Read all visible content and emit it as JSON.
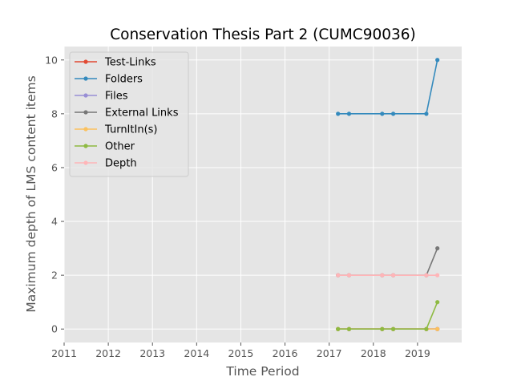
{
  "chart_data": {
    "type": "line",
    "title": "Conservation Thesis Part 2 (CUMC90036)",
    "xlabel": "Time Period",
    "ylabel": "Maximum depth of LMS content items",
    "xlim": [
      2011,
      2020
    ],
    "ylim": [
      -0.5,
      10.5
    ],
    "xticks": [
      2011,
      2012,
      2013,
      2014,
      2015,
      2016,
      2017,
      2018,
      2019
    ],
    "yticks": [
      0,
      2,
      4,
      6,
      8,
      10
    ],
    "x": [
      2017.2,
      2017.45,
      2018.2,
      2018.45,
      2019.2,
      2019.45
    ],
    "grid": true,
    "legend_position": "top-left",
    "series": [
      {
        "name": "Test-Links",
        "color": "#e24a33",
        "values": [
          0,
          0,
          0,
          0,
          0,
          0
        ]
      },
      {
        "name": "Folders",
        "color": "#348abd",
        "values": [
          8,
          8,
          8,
          8,
          8,
          10
        ]
      },
      {
        "name": "Files",
        "color": "#988ed5",
        "values": [
          0,
          0,
          0,
          0,
          0,
          0
        ]
      },
      {
        "name": "External Links",
        "color": "#777777",
        "values": [
          2,
          2,
          2,
          2,
          2,
          3
        ]
      },
      {
        "name": "TurnItIn(s)",
        "color": "#fbc15e",
        "values": [
          0,
          0,
          0,
          0,
          0,
          0
        ]
      },
      {
        "name": "Other",
        "color": "#8eba42",
        "values": [
          0,
          0,
          0,
          0,
          0,
          1
        ]
      },
      {
        "name": "Depth",
        "color": "#ffb5b8",
        "values": [
          2,
          2,
          2,
          2,
          2,
          2
        ]
      }
    ]
  }
}
